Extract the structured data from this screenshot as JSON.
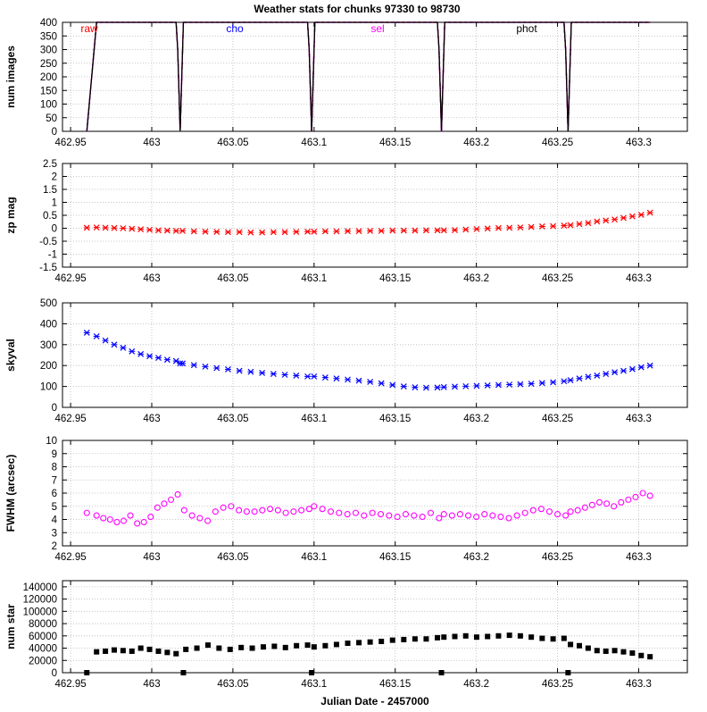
{
  "title": "Weather stats for chunks 97330 to 98730",
  "xlabel": "Julian Date - 2457000",
  "chart_data": [
    {
      "type": "line",
      "ylabel": "num images",
      "xlim": [
        462.945,
        463.33
      ],
      "ylim": [
        0,
        400
      ],
      "yticks": [
        "0",
        "50",
        "100",
        "150",
        "200",
        "250",
        "300",
        "350",
        "400"
      ],
      "xticks": [
        "462.95",
        "463",
        "463.05",
        "463.1",
        "463.15",
        "463.2",
        "463.25",
        "463.3"
      ],
      "legend": [
        "raw",
        "cho",
        "sel",
        "phot"
      ],
      "series": [
        {
          "name": "raw",
          "color": "#ff0000",
          "x": [
            462.96,
            462.966,
            463.015,
            463.016,
            463.0175,
            463.0195,
            463.096,
            463.097,
            463.0985,
            463.1005,
            463.176,
            463.177,
            463.1785,
            463.1805,
            463.254,
            463.255,
            463.2565,
            463.2585,
            463.307
          ],
          "y": [
            0,
            400,
            400,
            300,
            0,
            400,
            400,
            300,
            0,
            400,
            400,
            300,
            0,
            400,
            400,
            300,
            0,
            400,
            400
          ]
        },
        {
          "name": "cho",
          "color": "#0000ff",
          "x": [
            462.96,
            462.966,
            463.015,
            463.016,
            463.0175,
            463.0195,
            463.096,
            463.097,
            463.0985,
            463.1005,
            463.176,
            463.177,
            463.1785,
            463.1805,
            463.254,
            463.255,
            463.2565,
            463.2585,
            463.307
          ],
          "y": [
            0,
            400,
            400,
            300,
            0,
            400,
            400,
            300,
            0,
            400,
            400,
            300,
            0,
            400,
            400,
            300,
            0,
            400,
            400
          ]
        },
        {
          "name": "sel",
          "color": "#ff00ff",
          "x": [
            462.96,
            462.966,
            463.015,
            463.016,
            463.0175,
            463.0195,
            463.096,
            463.097,
            463.0985,
            463.1005,
            463.176,
            463.177,
            463.1785,
            463.1805,
            463.254,
            463.255,
            463.2565,
            463.2585,
            463.307
          ],
          "y": [
            0,
            400,
            400,
            300,
            0,
            400,
            400,
            300,
            0,
            400,
            400,
            300,
            0,
            400,
            400,
            300,
            0,
            400,
            400
          ]
        },
        {
          "name": "phot",
          "color": "#000000",
          "x": [
            462.96,
            462.966,
            463.015,
            463.016,
            463.0175,
            463.0195,
            463.096,
            463.097,
            463.0985,
            463.1005,
            463.176,
            463.177,
            463.1785,
            463.1805,
            463.254,
            463.255,
            463.2565,
            463.2585,
            463.307
          ],
          "y": [
            0,
            400,
            400,
            300,
            0,
            400,
            400,
            300,
            0,
            400,
            400,
            300,
            0,
            400,
            400,
            300,
            0,
            400,
            400
          ]
        }
      ]
    },
    {
      "type": "scatter",
      "ylabel": "zp mag",
      "xlim": [
        462.945,
        463.33
      ],
      "ylim": [
        -1.5,
        2.5
      ],
      "yticks": [
        "-1.5",
        "-1",
        "-0.5",
        "0",
        "0.5",
        "1",
        "1.5",
        "2",
        "2.5"
      ],
      "xticks": [
        "462.95",
        "463",
        "463.05",
        "463.1",
        "463.15",
        "463.2",
        "463.25",
        "463.3"
      ],
      "marker": "x",
      "color": "#ff0000",
      "segments": [
        {
          "x0": 462.96,
          "x1": 462.96,
          "y": [
            0.02
          ]
        },
        {
          "x0": 462.966,
          "x1": 463.015,
          "y": [
            0.03,
            0.02,
            0.01,
            0.0,
            -0.02,
            -0.04,
            -0.06,
            -0.08,
            -0.09,
            -0.1
          ]
        },
        {
          "x0": 463.019,
          "x1": 463.096,
          "y": [
            -0.1,
            -0.12,
            -0.13,
            -0.14,
            -0.15,
            -0.15,
            -0.16,
            -0.16,
            -0.15,
            -0.15,
            -0.14,
            -0.13
          ]
        },
        {
          "x0": 463.1,
          "x1": 463.176,
          "y": [
            -0.13,
            -0.12,
            -0.12,
            -0.11,
            -0.11,
            -0.1,
            -0.1,
            -0.09,
            -0.09,
            -0.09,
            -0.08,
            -0.08
          ]
        },
        {
          "x0": 463.18,
          "x1": 463.254,
          "y": [
            -0.08,
            -0.07,
            -0.05,
            -0.03,
            -0.01,
            0.01,
            0.02,
            0.03,
            0.05,
            0.07,
            0.08,
            0.1
          ]
        },
        {
          "x0": 463.258,
          "x1": 463.307,
          "y": [
            0.12,
            0.16,
            0.2,
            0.26,
            0.3,
            0.34,
            0.4,
            0.46,
            0.52,
            0.6
          ]
        }
      ]
    },
    {
      "type": "scatter",
      "ylabel": "skyval",
      "xlim": [
        462.945,
        463.33
      ],
      "ylim": [
        0,
        500
      ],
      "yticks": [
        "0",
        "100",
        "200",
        "300",
        "400",
        "500"
      ],
      "xticks": [
        "462.95",
        "463",
        "463.05",
        "463.1",
        "463.15",
        "463.2",
        "463.25",
        "463.3"
      ],
      "marker": "x",
      "color": "#0000ff",
      "segments": [
        {
          "x0": 462.96,
          "x1": 462.96,
          "y": [
            357
          ]
        },
        {
          "x0": 462.966,
          "x1": 463.015,
          "y": [
            340,
            320,
            300,
            285,
            268,
            255,
            245,
            237,
            228,
            222
          ]
        },
        {
          "x0": 463.0175,
          "x1": 463.0175,
          "y": [
            210
          ]
        },
        {
          "x0": 463.019,
          "x1": 463.096,
          "y": [
            210,
            202,
            195,
            188,
            182,
            175,
            170,
            165,
            160,
            156,
            152,
            148
          ]
        },
        {
          "x0": 463.1,
          "x1": 463.176,
          "y": [
            148,
            143,
            138,
            133,
            128,
            122,
            115,
            107,
            100,
            96,
            94,
            95
          ]
        },
        {
          "x0": 463.18,
          "x1": 463.254,
          "y": [
            97,
            99,
            101,
            103,
            105,
            107,
            109,
            111,
            113,
            116,
            120,
            125
          ]
        },
        {
          "x0": 463.258,
          "x1": 463.307,
          "y": [
            130,
            138,
            146,
            152,
            160,
            168,
            175,
            183,
            192,
            200
          ]
        }
      ]
    },
    {
      "type": "scatter",
      "ylabel": "FWHM (arcsec)",
      "xlim": [
        462.945,
        463.33
      ],
      "ylim": [
        2,
        10
      ],
      "yticks": [
        "2",
        "3",
        "4",
        "5",
        "6",
        "7",
        "8",
        "9",
        "10"
      ],
      "xticks": [
        "462.95",
        "463",
        "463.05",
        "463.1",
        "463.15",
        "463.2",
        "463.25",
        "463.3"
      ],
      "marker": "o",
      "color": "#ff00ff",
      "segments": [
        {
          "x0": 462.96,
          "x1": 462.96,
          "y": [
            4.5
          ]
        },
        {
          "x0": 462.966,
          "x1": 463.016,
          "y": [
            4.3,
            4.1,
            4.0,
            3.8,
            3.9,
            4.3,
            3.7,
            3.8,
            4.2,
            4.9,
            5.2,
            5.5,
            5.9
          ]
        },
        {
          "x0": 463.02,
          "x1": 463.097,
          "y": [
            4.7,
            4.3,
            4.1,
            3.9,
            4.6,
            4.9,
            5.0,
            4.7,
            4.6,
            4.6,
            4.7,
            4.8,
            4.7,
            4.5,
            4.6,
            4.7,
            4.8
          ]
        },
        {
          "x0": 463.1,
          "x1": 463.177,
          "y": [
            5.0,
            4.8,
            4.6,
            4.5,
            4.4,
            4.5,
            4.3,
            4.5,
            4.4,
            4.3,
            4.2,
            4.4,
            4.3,
            4.2,
            4.5,
            4.1
          ]
        },
        {
          "x0": 463.18,
          "x1": 463.255,
          "y": [
            4.4,
            4.3,
            4.4,
            4.3,
            4.2,
            4.4,
            4.3,
            4.2,
            4.1,
            4.3,
            4.5,
            4.7,
            4.8,
            4.6,
            4.4,
            4.3
          ]
        },
        {
          "x0": 463.258,
          "x1": 463.307,
          "y": [
            4.6,
            4.7,
            4.9,
            5.1,
            5.3,
            5.2,
            5.0,
            5.3,
            5.5,
            5.7,
            6.0,
            5.8
          ]
        }
      ]
    },
    {
      "type": "scatter",
      "ylabel": "num star",
      "xlabel": "Julian Date - 2457000",
      "xlim": [
        462.945,
        463.33
      ],
      "ylim": [
        0,
        150000
      ],
      "yticks": [
        "0",
        "20000",
        "40000",
        "60000",
        "80000",
        "100000",
        "120000",
        "140000"
      ],
      "xticks": [
        "462.95",
        "463",
        "463.05",
        "463.1",
        "463.15",
        "463.2",
        "463.25",
        "463.3"
      ],
      "marker": "square",
      "color": "#000000",
      "segments": [
        {
          "x0": 462.96,
          "x1": 462.96,
          "y": [
            0
          ]
        },
        {
          "x0": 462.966,
          "x1": 463.015,
          "y": [
            34000,
            35000,
            37000,
            36000,
            35000,
            40000,
            38000,
            35000,
            33000,
            31000
          ]
        },
        {
          "x0": 463.0195,
          "x1": 463.0195,
          "y": [
            0
          ]
        },
        {
          "x0": 463.021,
          "x1": 463.096,
          "y": [
            38000,
            40000,
            45000,
            40000,
            38000,
            41000,
            40000,
            42000,
            43000,
            41000,
            44000,
            45000
          ]
        },
        {
          "x0": 463.0985,
          "x1": 463.0985,
          "y": [
            0
          ]
        },
        {
          "x0": 463.1,
          "x1": 463.176,
          "y": [
            42000,
            44000,
            46000,
            48000,
            49000,
            50000,
            51000,
            53000,
            54000,
            55000,
            55000,
            57000
          ]
        },
        {
          "x0": 463.1785,
          "x1": 463.1785,
          "y": [
            0
          ]
        },
        {
          "x0": 463.18,
          "x1": 463.254,
          "y": [
            58000,
            59000,
            60000,
            58000,
            59000,
            60000,
            61000,
            60000,
            58000,
            56000,
            55000,
            56000
          ]
        },
        {
          "x0": 463.2565,
          "x1": 463.2565,
          "y": [
            0
          ]
        },
        {
          "x0": 463.258,
          "x1": 463.307,
          "y": [
            46000,
            44000,
            40000,
            36000,
            35000,
            36000,
            34000,
            32000,
            28000,
            26000
          ]
        }
      ]
    }
  ]
}
